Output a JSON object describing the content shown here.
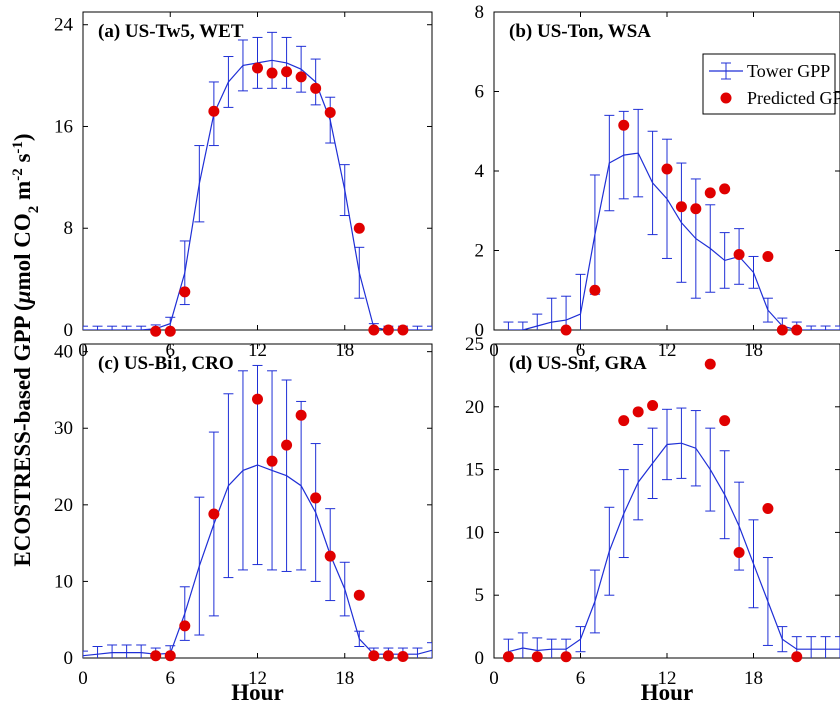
{
  "chart_data": [
    {
      "type": "line",
      "title": "(a) US-Tw5, WET",
      "xlim": [
        0,
        24
      ],
      "ylim": [
        0,
        25
      ],
      "xticks": [
        0,
        6,
        12,
        18
      ],
      "yticks": [
        0,
        8,
        16,
        24
      ],
      "xlabel": "",
      "series": [
        {
          "name": "Tower GPP",
          "x": [
            0,
            1,
            2,
            3,
            4,
            5,
            6,
            7,
            8,
            9,
            10,
            11,
            12,
            13,
            14,
            15,
            16,
            17,
            18,
            19,
            20,
            21,
            22,
            23,
            24
          ],
          "values": [
            0,
            0,
            0,
            0,
            0,
            0.1,
            0.5,
            4.5,
            11.5,
            17,
            19.5,
            20.8,
            21,
            21.2,
            21,
            20.5,
            19.5,
            16.5,
            11,
            4.5,
            0.2,
            0,
            0,
            0,
            0
          ],
          "err": [
            0.3,
            0.3,
            0.3,
            0.3,
            0.3,
            0.3,
            0.5,
            2.5,
            3,
            2.5,
            2,
            2,
            2,
            2.2,
            2,
            1.8,
            1.8,
            1.8,
            2,
            2,
            0.3,
            0.3,
            0.3,
            0.3,
            0.3
          ]
        },
        {
          "name": "Predicted GPP",
          "x": [
            5,
            6,
            7,
            9,
            12,
            13,
            14,
            15,
            16,
            17,
            19,
            20,
            21,
            22
          ],
          "values": [
            -0.1,
            -0.1,
            3,
            17.2,
            20.6,
            20.2,
            20.3,
            19.9,
            19,
            17.1,
            8,
            0,
            0,
            0
          ]
        }
      ]
    },
    {
      "type": "line",
      "title": "(b) US-Ton, WSA",
      "xlim": [
        0,
        24
      ],
      "ylim": [
        0,
        8
      ],
      "xticks": [
        0,
        6,
        12,
        18
      ],
      "yticks": [
        0,
        2,
        4,
        6,
        8
      ],
      "xlabel": "",
      "legend": {
        "placement": "top-right",
        "entries": [
          "Tower GPP",
          "Predicted GPP"
        ]
      },
      "series": [
        {
          "name": "Tower GPP",
          "x": [
            1,
            2,
            3,
            4,
            5,
            6,
            7,
            8,
            9,
            10,
            11,
            12,
            13,
            14,
            15,
            16,
            17,
            18,
            19,
            20,
            21,
            22,
            23,
            24
          ],
          "values": [
            0,
            0,
            0.1,
            0.2,
            0.25,
            0.4,
            2.4,
            4.2,
            4.4,
            4.45,
            3.7,
            3.3,
            2.7,
            2.3,
            2.05,
            1.75,
            1.85,
            1.45,
            0.5,
            0.1,
            0,
            0,
            0,
            0
          ],
          "err": [
            0.2,
            0.2,
            0.3,
            0.6,
            0.6,
            1,
            1.5,
            1.2,
            1.1,
            1.1,
            1.3,
            1.5,
            1.5,
            1.5,
            1.1,
            0.7,
            0.7,
            0.4,
            0.3,
            0.2,
            0.2,
            0.1,
            0.1,
            0.1
          ]
        },
        {
          "name": "Predicted GPP",
          "x": [
            5,
            7,
            9,
            12,
            13,
            14,
            15,
            16,
            17,
            19,
            20,
            21
          ],
          "values": [
            0,
            1,
            5.15,
            4.05,
            3.1,
            3.05,
            3.45,
            3.55,
            1.9,
            1.85,
            0,
            0
          ]
        }
      ]
    },
    {
      "type": "line",
      "title": "(c) US-Bi1, CRO",
      "xlim": [
        0,
        24
      ],
      "ylim": [
        0,
        41
      ],
      "xticks": [
        0,
        6,
        12,
        18
      ],
      "yticks": [
        0,
        10,
        20,
        30,
        40
      ],
      "xlabel": "Hour",
      "series": [
        {
          "name": "Tower GPP",
          "x": [
            0,
            1,
            2,
            3,
            4,
            5,
            6,
            7,
            8,
            9,
            10,
            11,
            12,
            13,
            14,
            15,
            16,
            17,
            18,
            19,
            20,
            21,
            22,
            23,
            24
          ],
          "values": [
            0.3,
            0.5,
            0.7,
            0.7,
            0.7,
            0.5,
            0.6,
            5.8,
            12,
            17.5,
            22.5,
            24.5,
            25.2,
            24.5,
            23.8,
            22.5,
            19,
            13.5,
            9,
            2.5,
            0.5,
            0.5,
            0.5,
            0.5,
            1
          ],
          "err": [
            0.6,
            1,
            1,
            1,
            1,
            0.8,
            1,
            3.5,
            9,
            12,
            12,
            13,
            13,
            13,
            12.5,
            11,
            9,
            6,
            3.5,
            1,
            0.8,
            0.8,
            0.8,
            0.8,
            1
          ]
        },
        {
          "name": "Predicted GPP",
          "x": [
            5,
            6,
            7,
            9,
            12,
            13,
            14,
            15,
            16,
            17,
            19,
            20,
            21,
            22
          ],
          "values": [
            0.3,
            0.3,
            4.2,
            18.8,
            33.8,
            25.7,
            27.8,
            31.7,
            20.9,
            13.3,
            8.2,
            0.3,
            0.3,
            0.2
          ]
        }
      ]
    },
    {
      "type": "line",
      "title": "(d) US-Snf, GRA",
      "xlim": [
        0,
        24
      ],
      "ylim": [
        0,
        25
      ],
      "xticks": [
        0,
        6,
        12,
        18
      ],
      "yticks": [
        0,
        5,
        10,
        15,
        20,
        25
      ],
      "xlabel": "Hour",
      "series": [
        {
          "name": "Tower GPP",
          "x": [
            1,
            2,
            3,
            4,
            5,
            6,
            7,
            8,
            9,
            10,
            11,
            12,
            13,
            14,
            15,
            16,
            17,
            18,
            19,
            20,
            21,
            22,
            23,
            24
          ],
          "values": [
            0.5,
            0.8,
            0.6,
            0.7,
            0.7,
            1.5,
            4.5,
            8.5,
            11.5,
            14,
            15.5,
            17,
            17.1,
            16.7,
            15,
            13,
            10.5,
            7.5,
            4.5,
            1.5,
            0.7,
            0.7,
            0.7,
            0.7
          ],
          "err": [
            1,
            1.2,
            1,
            0.8,
            0.8,
            1,
            2.5,
            3.5,
            3.5,
            3,
            2.8,
            2.8,
            2.8,
            3,
            3.3,
            3.5,
            3.5,
            3.5,
            3.5,
            1,
            1,
            1,
            1,
            1
          ]
        },
        {
          "name": "Predicted GPP",
          "x": [
            1,
            3,
            5,
            9,
            10,
            11,
            15,
            16,
            17,
            19,
            21
          ],
          "values": [
            0.1,
            0.1,
            0.1,
            18.9,
            19.6,
            20.1,
            23.4,
            18.9,
            8.4,
            11.9,
            0.1
          ]
        }
      ]
    }
  ],
  "ylabel_shared": {
    "pre": "ECOSTRESS-based GPP (",
    "mu": "μ",
    "mol": "mol CO",
    "sub2": "2",
    "m": " m",
    "sup_m": "-2",
    "s": " s",
    "sup_s": "-1",
    "post": ")"
  },
  "colors": {
    "tower_line": "#1f2fd6",
    "predicted": "#e00000",
    "axes": "#000000"
  }
}
